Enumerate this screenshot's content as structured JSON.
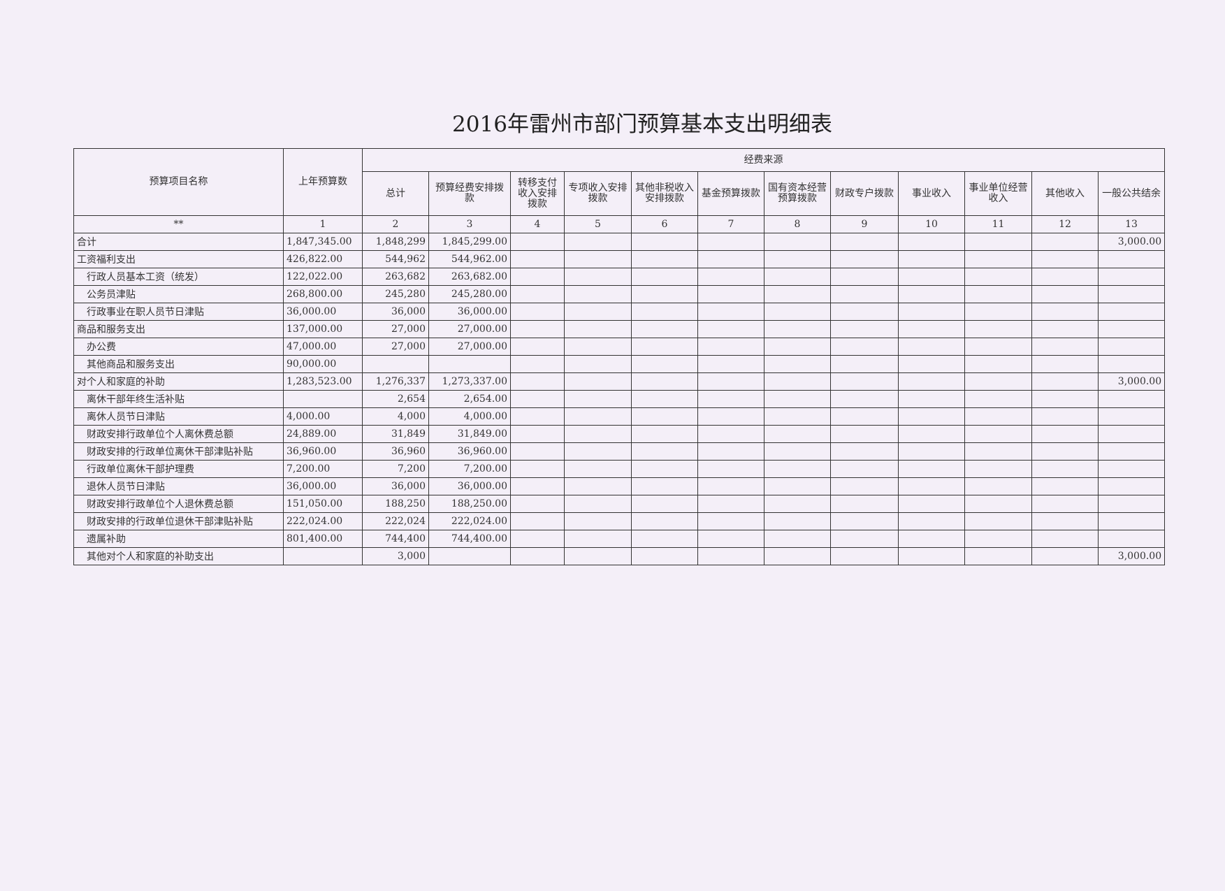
{
  "header": {
    "title": "2016年雷州市部门预算基本支出明细表"
  },
  "table": {
    "name_header": "预算项目名称",
    "prev_header": "上年预算数",
    "group_header": "经费来源",
    "sub_headers": [
      "总计",
      "预算经费安排拨款",
      "转移支付收入安排拨款",
      "专项收入安排拨款",
      "其他非税收入安排拨款",
      "基金预算拨款",
      "国有资本经营预算拨款",
      "财政专户拨款",
      "事业收入",
      "事业单位经营收入",
      "其他收入",
      "一般公共结余"
    ],
    "index_row": [
      "**",
      "1",
      "2",
      "3",
      "4",
      "5",
      "6",
      "7",
      "8",
      "9",
      "10",
      "11",
      "12",
      "13"
    ],
    "rows": [
      {
        "level": 0,
        "cells": [
          "合计",
          "1,847,345.00",
          "1,848,299",
          "1,845,299.00",
          null,
          null,
          null,
          null,
          null,
          null,
          null,
          null,
          null,
          "3,000.00"
        ]
      },
      {
        "level": 0,
        "cells": [
          "工资福利支出",
          "426,822.00",
          "544,962",
          "544,962.00",
          null,
          null,
          null,
          null,
          null,
          null,
          null,
          null,
          null,
          null
        ]
      },
      {
        "level": 1,
        "cells": [
          "行政人员基本工资（统发）",
          "122,022.00",
          "263,682",
          "263,682.00",
          null,
          null,
          null,
          null,
          null,
          null,
          null,
          null,
          null,
          null
        ]
      },
      {
        "level": 1,
        "cells": [
          "公务员津贴",
          "268,800.00",
          "245,280",
          "245,280.00",
          null,
          null,
          null,
          null,
          null,
          null,
          null,
          null,
          null,
          null
        ]
      },
      {
        "level": 1,
        "cells": [
          "行政事业在职人员节日津贴",
          "36,000.00",
          "36,000",
          "36,000.00",
          null,
          null,
          null,
          null,
          null,
          null,
          null,
          null,
          null,
          null
        ]
      },
      {
        "level": 0,
        "cells": [
          "商品和服务支出",
          "137,000.00",
          "27,000",
          "27,000.00",
          null,
          null,
          null,
          null,
          null,
          null,
          null,
          null,
          null,
          null
        ]
      },
      {
        "level": 1,
        "cells": [
          "办公费",
          "47,000.00",
          "27,000",
          "27,000.00",
          null,
          null,
          null,
          null,
          null,
          null,
          null,
          null,
          null,
          null
        ]
      },
      {
        "level": 1,
        "cells": [
          "其他商品和服务支出",
          "90,000.00",
          null,
          null,
          null,
          null,
          null,
          null,
          null,
          null,
          null,
          null,
          null,
          null
        ]
      },
      {
        "level": 0,
        "cells": [
          "对个人和家庭的补助",
          "1,283,523.00",
          "1,276,337",
          "1,273,337.00",
          null,
          null,
          null,
          null,
          null,
          null,
          null,
          null,
          null,
          "3,000.00"
        ]
      },
      {
        "level": 1,
        "cells": [
          "离休干部年终生活补贴",
          null,
          "2,654",
          "2,654.00",
          null,
          null,
          null,
          null,
          null,
          null,
          null,
          null,
          null,
          null
        ]
      },
      {
        "level": 1,
        "cells": [
          "离休人员节日津贴",
          "4,000.00",
          "4,000",
          "4,000.00",
          null,
          null,
          null,
          null,
          null,
          null,
          null,
          null,
          null,
          null
        ]
      },
      {
        "level": 1,
        "cells": [
          "财政安排行政单位个人离休费总额",
          "24,889.00",
          "31,849",
          "31,849.00",
          null,
          null,
          null,
          null,
          null,
          null,
          null,
          null,
          null,
          null
        ]
      },
      {
        "level": 1,
        "cells": [
          "财政安排的行政单位离休干部津贴补贴",
          "36,960.00",
          "36,960",
          "36,960.00",
          null,
          null,
          null,
          null,
          null,
          null,
          null,
          null,
          null,
          null
        ]
      },
      {
        "level": 1,
        "cells": [
          "行政单位离休干部护理费",
          "7,200.00",
          "7,200",
          "7,200.00",
          null,
          null,
          null,
          null,
          null,
          null,
          null,
          null,
          null,
          null
        ]
      },
      {
        "level": 1,
        "cells": [
          "退休人员节日津贴",
          "36,000.00",
          "36,000",
          "36,000.00",
          null,
          null,
          null,
          null,
          null,
          null,
          null,
          null,
          null,
          null
        ]
      },
      {
        "level": 1,
        "cells": [
          "财政安排行政单位个人退休费总额",
          "151,050.00",
          "188,250",
          "188,250.00",
          null,
          null,
          null,
          null,
          null,
          null,
          null,
          null,
          null,
          null
        ]
      },
      {
        "level": 1,
        "cells": [
          "财政安排的行政单位退休干部津贴补贴",
          "222,024.00",
          "222,024",
          "222,024.00",
          null,
          null,
          null,
          null,
          null,
          null,
          null,
          null,
          null,
          null
        ]
      },
      {
        "level": 1,
        "cells": [
          "遗属补助",
          "801,400.00",
          "744,400",
          "744,400.00",
          null,
          null,
          null,
          null,
          null,
          null,
          null,
          null,
          null,
          null
        ]
      },
      {
        "level": 1,
        "cells": [
          "其他对个人和家庭的补助支出",
          null,
          "3,000",
          null,
          null,
          null,
          null,
          null,
          null,
          null,
          null,
          null,
          null,
          "3,000.00"
        ]
      }
    ]
  }
}
